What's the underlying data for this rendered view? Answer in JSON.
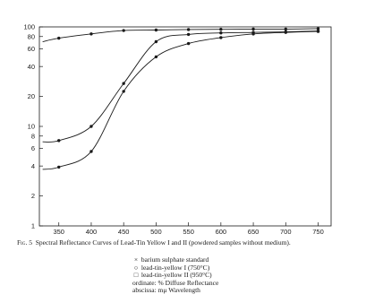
{
  "chart_data": {
    "type": "line",
    "title": "Spectral Reflectance Curves of Lead-Tin Yellow I and II (powdered samples without medium).",
    "figure_label": "Fig. 5",
    "xlabel": "mμ Wavelength",
    "ylabel": "% Diffuse Reflectance",
    "x_axis": {
      "min": 320,
      "max": 770,
      "ticks": [
        350,
        400,
        450,
        500,
        550,
        600,
        650,
        700,
        750
      ]
    },
    "y_axis": {
      "scale": "log",
      "min": 1,
      "max": 100,
      "ticks": [
        1,
        2,
        4,
        6,
        8,
        10,
        20,
        40,
        60,
        80,
        100
      ],
      "tick_labels": [
        "1",
        "2",
        "4",
        "6",
        "8",
        "10",
        "20",
        "40",
        "60",
        "80",
        "100"
      ]
    },
    "grid": false,
    "series": [
      {
        "name": "barium sulphate standard",
        "marker": "cross",
        "points": [
          [
            325,
            71
          ],
          [
            350,
            77
          ],
          [
            400,
            85
          ],
          [
            450,
            92
          ],
          [
            500,
            93
          ],
          [
            550,
            94
          ],
          [
            600,
            94.5
          ],
          [
            650,
            95
          ],
          [
            700,
            95
          ],
          [
            750,
            96
          ]
        ]
      },
      {
        "name": "lead-tin-yellow I (750°C)",
        "marker": "circle",
        "points": [
          [
            325,
            3.7
          ],
          [
            350,
            3.9
          ],
          [
            400,
            5.6
          ],
          [
            450,
            22.5
          ],
          [
            500,
            50
          ],
          [
            550,
            68
          ],
          [
            600,
            78
          ],
          [
            650,
            85
          ],
          [
            700,
            88
          ],
          [
            750,
            90
          ]
        ]
      },
      {
        "name": "lead-tin-yellow II (950°C)",
        "marker": "square",
        "points": [
          [
            325,
            7
          ],
          [
            350,
            7.2
          ],
          [
            400,
            10
          ],
          [
            450,
            27
          ],
          [
            500,
            71
          ],
          [
            550,
            84
          ],
          [
            600,
            87
          ],
          [
            650,
            88
          ],
          [
            700,
            89
          ],
          [
            750,
            91
          ]
        ]
      }
    ]
  },
  "caption": {
    "fig_label": "Fig. 5",
    "text": "Spectral Reflectance Curves of Lead-Tin Yellow I and II (powdered samples without medium)."
  },
  "legend": {
    "items": [
      {
        "symbol": "×",
        "label": "barium sulphate standard"
      },
      {
        "symbol": "○",
        "label": "lead-tin-yellow I (750°C)"
      },
      {
        "symbol": "□",
        "label": "lead-tin-yellow II (950°C)"
      }
    ],
    "ordinate_prefix": "ordinate:",
    "ordinate_text": "% Diffuse Reflectance",
    "abscissa_prefix": "abscissa:",
    "abscissa_text": "mμ Wavelength"
  },
  "colors": {
    "ink": "#1a1a1a",
    "paper": "#ffffff"
  }
}
